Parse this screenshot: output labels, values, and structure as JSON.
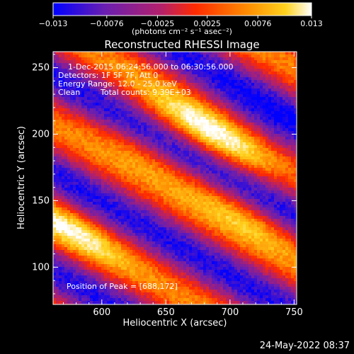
{
  "chart_data": {
    "type": "heatmap",
    "title": "Reconstructed RHESSI Image",
    "xlabel": "Heliocentric X (arcsec)",
    "ylabel": "Heliocentric Y (arcsec)",
    "xlim": [
      562,
      752
    ],
    "ylim": [
      72,
      262
    ],
    "x_ticks": [
      600,
      650,
      700,
      750
    ],
    "y_ticks": [
      100,
      150,
      200,
      250
    ],
    "colorbar": {
      "range": [
        -0.013,
        0.013
      ],
      "tick_values": [
        -0.013,
        -0.0076,
        -0.0025,
        0.0025,
        0.0076,
        0.013
      ],
      "tick_labels": [
        "−0.013",
        "−0.0076",
        "−0.0025",
        "0.0025",
        "0.0076",
        "0.013"
      ],
      "unit_label": "(photons cm⁻² s⁻¹ asec⁻²)",
      "colors": [
        "#0000ff",
        "#6a1fb0",
        "#b4206a",
        "#ff2a00",
        "#ff8c00",
        "#ffd21e",
        "#ffffff"
      ]
    },
    "annotations": {
      "time_range": "1-Dec-2015 06:24:56.000 to 06:30:56.000",
      "detectors": "Detectors: 1F 5F 7F, Att 0",
      "energy": "Energy Range: 12.0 - 25.0 keV",
      "method": "Clean",
      "total_counts": "Total counts: 9.39E+03",
      "peak": "Position of Peak = [688,172]"
    },
    "peak_position": [
      688,
      172
    ],
    "grid": false
  },
  "footer": {
    "timestamp": "24-May-2022 08:37"
  }
}
